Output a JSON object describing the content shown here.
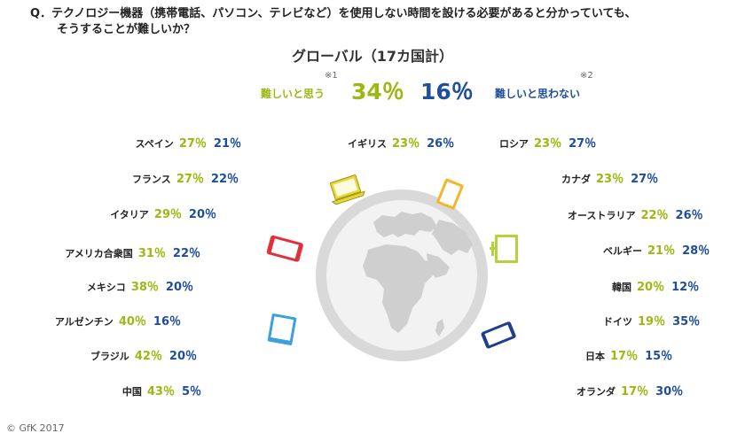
{
  "question": {
    "line1": "Q．テクノロジー機器（携帯電話、パソコン、テレビなど）を使用しない時間を設ける必要があると分かっていても、",
    "line2": "そうすることが難しいか？"
  },
  "global": {
    "title": "グローバル（17カ国計）",
    "hard_label": "難しいと思う",
    "hard_note": "※1",
    "hard_pct": "34％",
    "not_hard_pct": "16％",
    "not_hard_label": "難しいと思わない",
    "not_hard_note": "※2"
  },
  "colors": {
    "hard": "#9cb813",
    "not_hard": "#1f4e9c",
    "globe": "#d6d6d6"
  },
  "countries_left": [
    {
      "name": "スペイン",
      "hard": "27％",
      "not_hard": "21％"
    },
    {
      "name": "フランス",
      "hard": "27％",
      "not_hard": "22％"
    },
    {
      "name": "イタリア",
      "hard": "29％",
      "not_hard": "20％"
    },
    {
      "name": "アメリカ合衆国",
      "hard": "31％",
      "not_hard": "22％"
    },
    {
      "name": "メキシコ",
      "hard": "38％",
      "not_hard": "20％"
    },
    {
      "name": "アルゼンチン",
      "hard": "40％",
      "not_hard": "16％"
    },
    {
      "name": "ブラジル",
      "hard": "42％",
      "not_hard": "20％"
    },
    {
      "name": "中国",
      "hard": "43％",
      "not_hard": "5％"
    }
  ],
  "countries_center": [
    {
      "name": "イギリス",
      "hard": "23％",
      "not_hard": "26％"
    }
  ],
  "countries_right": [
    {
      "name": "ロシア",
      "hard": "23％",
      "not_hard": "27％"
    },
    {
      "name": "カナダ",
      "hard": "23％",
      "not_hard": "27％"
    },
    {
      "name": "オーストラリア",
      "hard": "22％",
      "not_hard": "26％"
    },
    {
      "name": "ベルギー",
      "hard": "21％",
      "not_hard": "28％"
    },
    {
      "name": "韓国",
      "hard": "20％",
      "not_hard": "12％"
    },
    {
      "name": "ドイツ",
      "hard": "19％",
      "not_hard": "35％"
    },
    {
      "name": "日本",
      "hard": "17％",
      "not_hard": "15％"
    },
    {
      "name": "オランダ",
      "hard": "17％",
      "not_hard": "30％"
    }
  ],
  "icons": [
    "globe-icon",
    "laptop-icon",
    "tablet-icon",
    "smartphone-icon",
    "monitor-icon"
  ],
  "copyright": "© GfK 2017"
}
